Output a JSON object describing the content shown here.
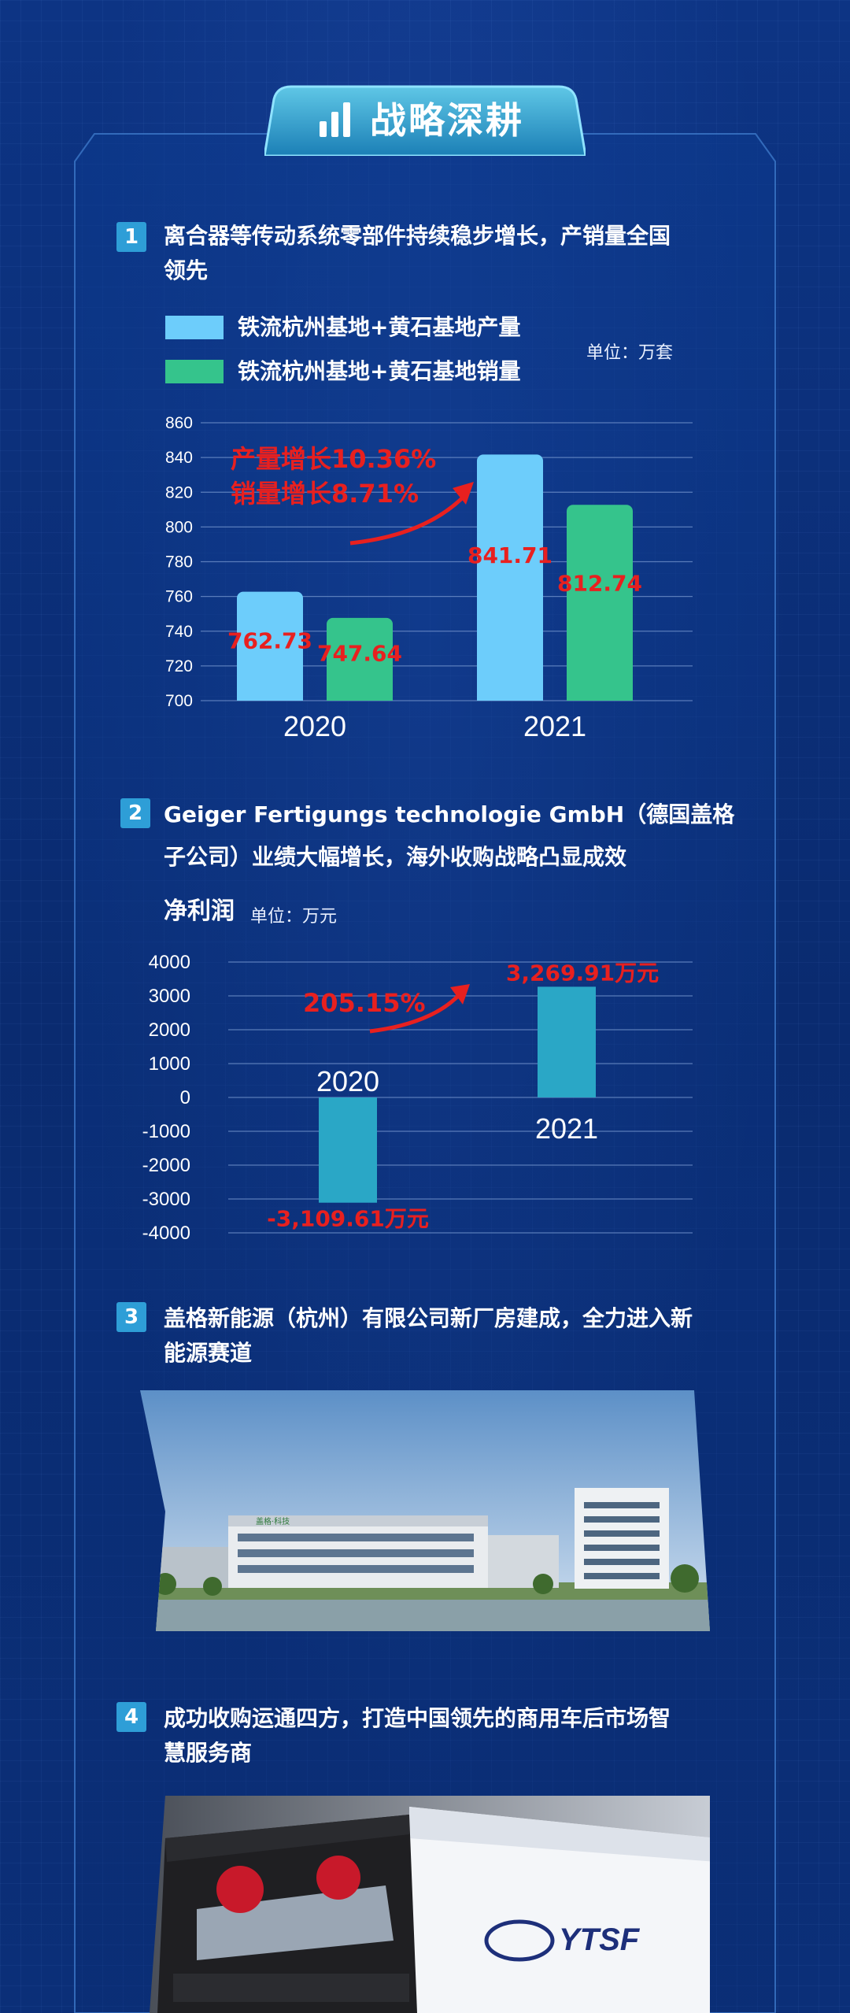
{
  "header": {
    "title": "战略深耕"
  },
  "sections": [
    {
      "num": "1",
      "line1": "离合器等传动系统零部件持续稳步增长，产销量全国",
      "line2": "领先"
    },
    {
      "num": "2",
      "line1": "Geiger Fertigungs technologie GmbH（德国盖格",
      "line2": "子公司）业绩大幅增长，海外收购战略凸显成效"
    },
    {
      "num": "3",
      "line1": "盖格新能源（杭州）有限公司新厂房建成，全力进入新",
      "line2": "能源赛道"
    },
    {
      "num": "4",
      "line1": "成功收购运通四方，打造中国领先的商用车后市场智",
      "line2": "慧服务商"
    }
  ],
  "chart1_labels": {
    "unit": "单位：万套",
    "growth_line1": "产量增长10.36%",
    "growth_line2": "销量增长8.71%"
  },
  "chart2_labels": {
    "title": "净利润",
    "unit": "单位：万元",
    "growth": "205.15%"
  },
  "photo_building_sign": "盖格·科技",
  "photo_truck_logo": "YTSF",
  "colors": {
    "production": "#6dcdfb",
    "sales": "#35c48c",
    "profit_bar": "#2aa7c6",
    "highlight": "#e8201f",
    "badge": "#2e9ed7"
  },
  "chart_data": [
    {
      "type": "bar",
      "categories": [
        "2020",
        "2021"
      ],
      "series": [
        {
          "name": "铁流杭州基地+黄石基地产量",
          "values": [
            762.73,
            841.71
          ],
          "labels": [
            "762.73",
            "841.71"
          ],
          "color": "#6dcdfb"
        },
        {
          "name": "铁流杭州基地+黄石基地销量",
          "values": [
            747.64,
            812.74
          ],
          "labels": [
            "747.64",
            "812.74"
          ],
          "color": "#35c48c"
        }
      ],
      "ylim": [
        700,
        860
      ],
      "yticks": [
        "700",
        "720",
        "740",
        "760",
        "780",
        "800",
        "820",
        "840",
        "860"
      ],
      "ytick_values": [
        700,
        720,
        740,
        760,
        780,
        800,
        820,
        840,
        860
      ],
      "grid": true,
      "legend": "top-left"
    },
    {
      "type": "bar",
      "categories": [
        "2020",
        "2021"
      ],
      "values": [
        -3109.61,
        3269.91
      ],
      "labels": [
        "-3,109.61万元",
        "3,269.91万元"
      ],
      "ylim": [
        -4000,
        4000
      ],
      "yticks": [
        "4000",
        "3000",
        "2000",
        "1000",
        "0",
        "-1000",
        "-2000",
        "-3000",
        "-4000"
      ],
      "ytick_values": [
        4000,
        3000,
        2000,
        1000,
        0,
        -1000,
        -2000,
        -3000,
        -4000
      ],
      "grid": true
    }
  ]
}
